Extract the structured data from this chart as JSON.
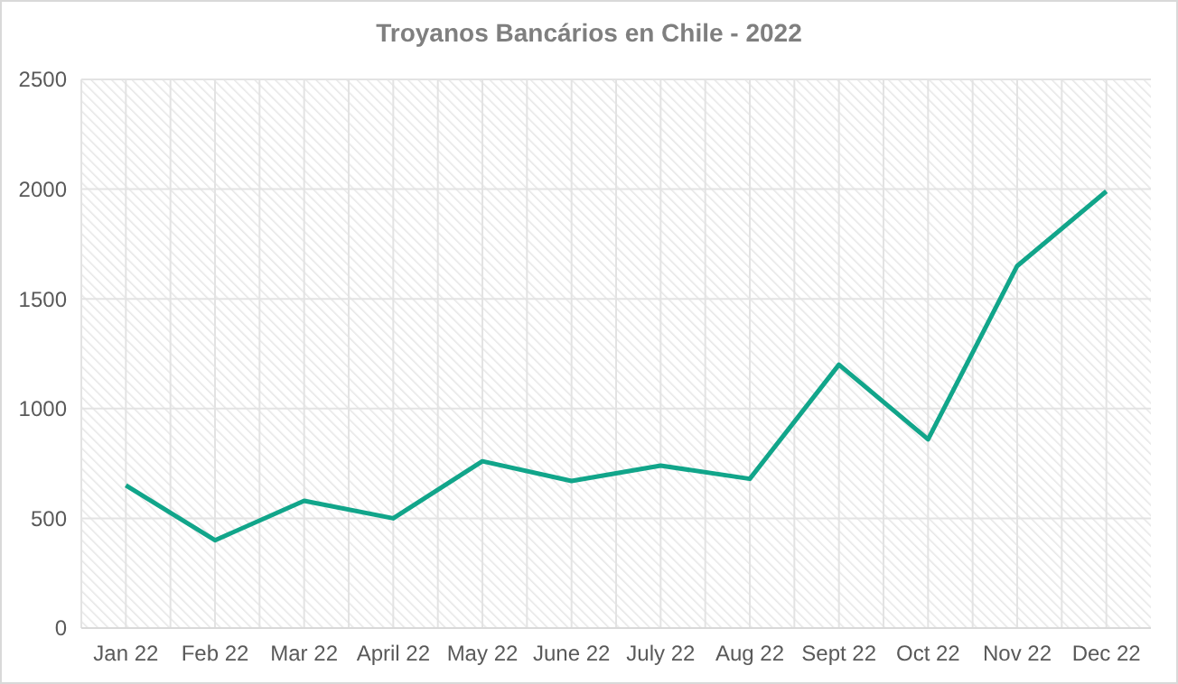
{
  "chart_data": {
    "type": "line",
    "title": "Troyanos Bancários en Chile - 2022",
    "categories": [
      "Jan 22",
      "Feb 22",
      "Mar 22",
      "April 22",
      "May 22",
      "June 22",
      "July 22",
      "Aug 22",
      "Sept 22",
      "Oct 22",
      "Nov 22",
      "Dec 22"
    ],
    "series": [
      {
        "color": "#11a58a",
        "values": [
          650,
          400,
          580,
          500,
          760,
          670,
          740,
          680,
          1200,
          860,
          1650,
          1990
        ]
      }
    ],
    "ylim": [
      0,
      2500
    ],
    "yticks": [
      0,
      500,
      1000,
      1500,
      2000,
      2500
    ],
    "grid": true,
    "marker": "none",
    "line_style": "solid"
  }
}
